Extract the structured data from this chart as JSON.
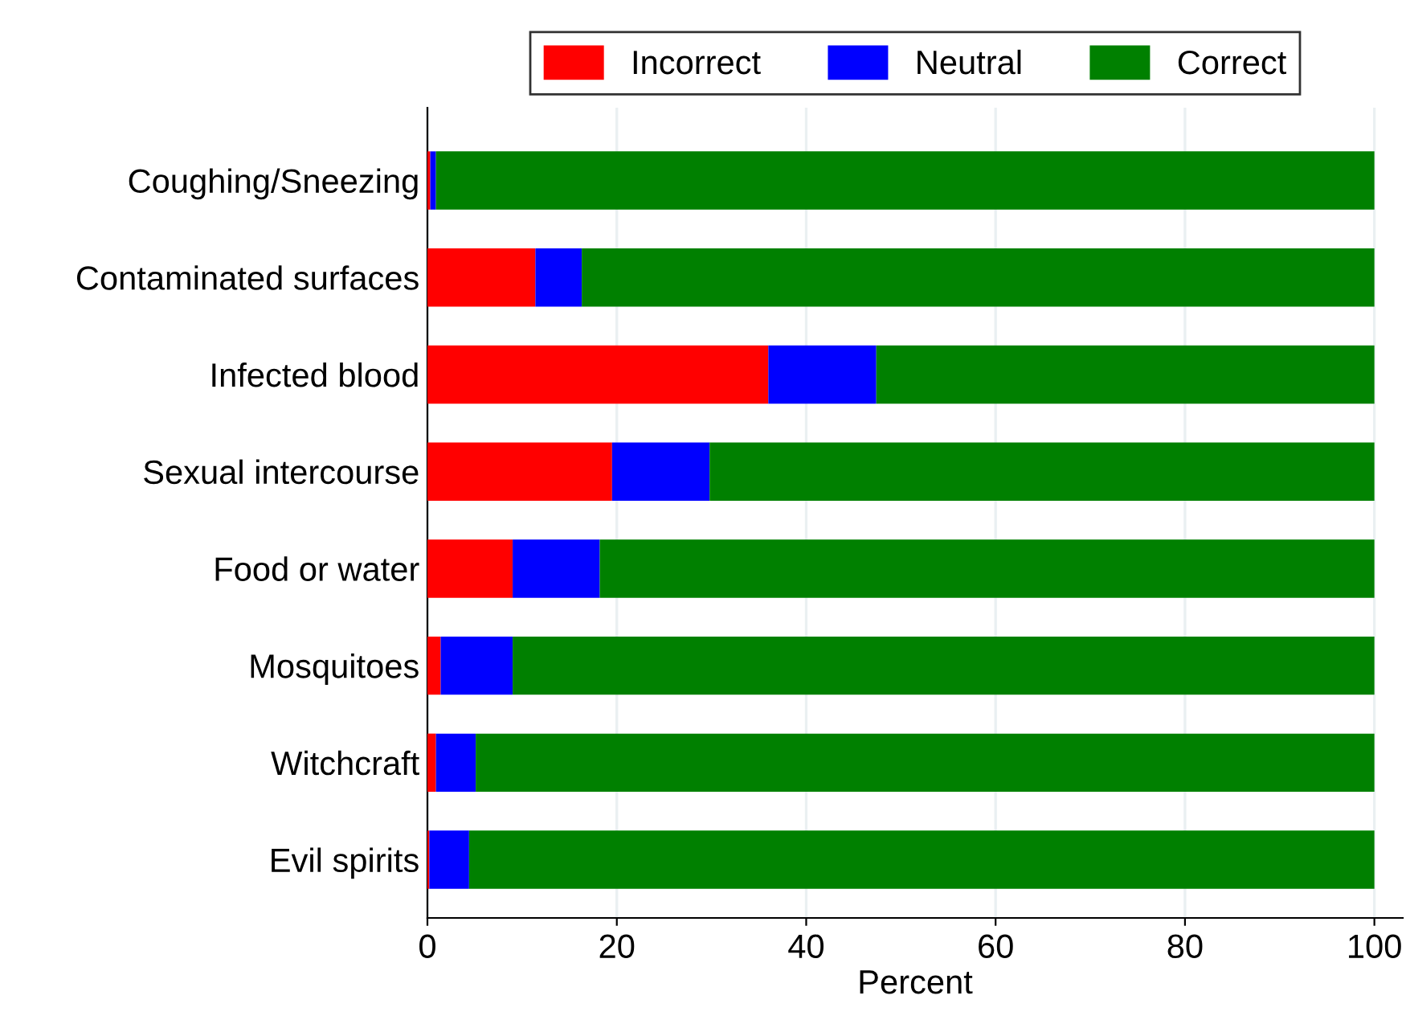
{
  "chart_data": {
    "type": "bar",
    "orientation": "horizontal",
    "stacked": true,
    "xlabel": "Percent",
    "categories": [
      "Coughing/Sneezing",
      "Contaminated surfaces",
      "Infected blood",
      "Sexual intercourse",
      "Food or water",
      "Mosquitoes",
      "Witchcraft",
      "Evil spirits"
    ],
    "series": [
      {
        "name": "Incorrect",
        "color": "#ff0000",
        "values": [
          0.3,
          11.4,
          36.0,
          19.5,
          9.0,
          1.4,
          0.9,
          0.2
        ]
      },
      {
        "name": "Neutral",
        "color": "#0000ff",
        "values": [
          0.6,
          4.9,
          11.4,
          10.3,
          9.2,
          7.6,
          4.2,
          4.2
        ]
      },
      {
        "name": "Correct",
        "color": "#008000",
        "values": [
          99.1,
          83.7,
          52.6,
          70.2,
          81.8,
          91.0,
          94.9,
          95.6
        ]
      }
    ],
    "xlim": [
      0,
      103
    ],
    "xticks": [
      0,
      20,
      40,
      60,
      80,
      100
    ],
    "grid": "x",
    "legend": "top"
  }
}
